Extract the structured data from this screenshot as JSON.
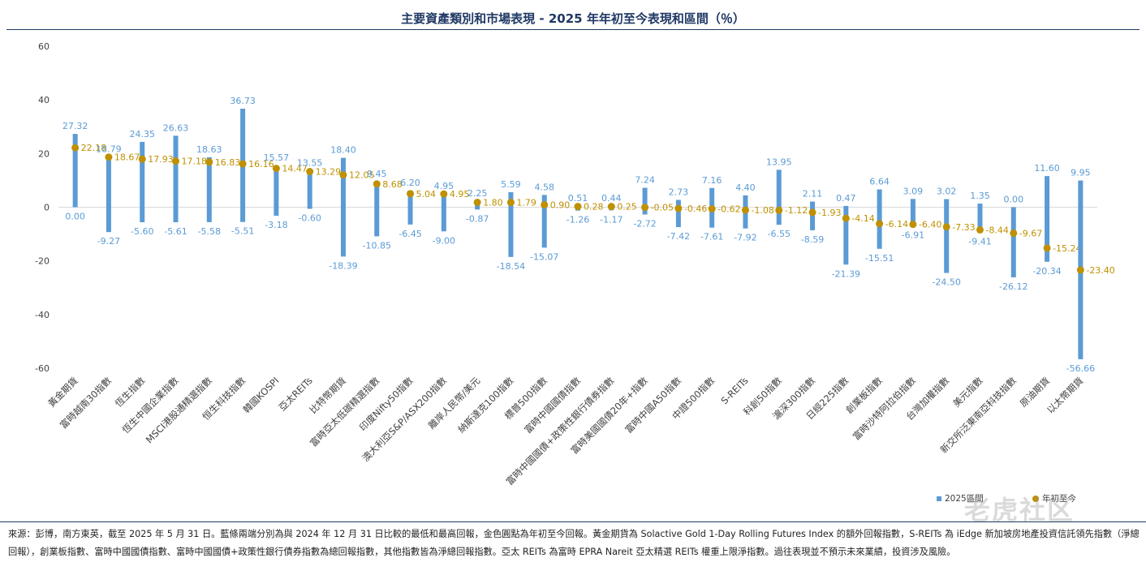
{
  "title": "主要資產類別和市場表現 - 2025 年年初至今表現和區間（％）",
  "footnote": "來源：彭博，南方東英，截至 2025 年 5 月 31 日。藍條兩端分別為與 2024 年 12 月 31 日比較的最低和最高回報，金色圓點為年初至今回報。黃金期貨為 Solactive Gold 1-Day Rolling Futures Index 的額外回報指數，S-REITs 為 iEdge 新加坡房地產投資信託領先指數（淨總回報），創業板指數、富時中國國債指數、富時中國國債+政策性銀行債券指數為總回報指數，其他指數皆為淨總回報指數。亞太 REITs 為富時 EPRA Nareit 亞太精選 REITs 權重上限淨指數。過往表現並不預示未來業績，投資涉及風險。",
  "watermark": "老虎社区",
  "colors": {
    "bar": "#5b9bd5",
    "dot": "#bf9000",
    "title": "#1f3864"
  },
  "chart_data": {
    "type": "bar",
    "ylim": [
      -60,
      60
    ],
    "yticks": [
      "60",
      "40",
      "20",
      "0",
      "-20",
      "-40",
      "-60"
    ],
    "ytick_values": [
      60,
      40,
      20,
      0,
      -20,
      -40,
      -60
    ],
    "grid": "zero-line only",
    "legend": {
      "position": "bottom-right",
      "range_label": "2025區間",
      "ytd_label": "年初至今"
    },
    "categories": [
      "黃金期貨",
      "富時越南30指數",
      "恆生指數",
      "恆生中國企業指數",
      "MSCI港股通精選指數",
      "恒生科技指數",
      "韓國KOSPI",
      "亞太REITs",
      "比特幣期貨",
      "富時亞太低碳精選指數",
      "印度Nifty50指數",
      "澳大利亞S&P/ASX200指數",
      "離岸人民幣/美元",
      "納斯達克100指數",
      "標普500指數",
      "富時中國國債指數",
      "富時中國國債+政策性銀行債券指數",
      "富時美國國債20年+指數",
      "富時中國A50指數",
      "中證500指數",
      "S-REITs",
      "科創50指數",
      "滬深300指數",
      "日經225指數",
      "創業板指數",
      "富時沙特阿拉伯指數",
      "台灣加權指數",
      "美元指數",
      "新交所泛東南亞科技指數",
      "原油期貨",
      "以太幣期貨"
    ],
    "high": [
      27.32,
      18.79,
      24.35,
      26.63,
      18.63,
      36.73,
      15.57,
      13.55,
      18.4,
      9.45,
      6.2,
      4.95,
      2.25,
      5.59,
      4.58,
      0.51,
      0.44,
      7.24,
      2.73,
      7.16,
      4.4,
      13.95,
      2.11,
      0.47,
      6.64,
      3.09,
      3.02,
      1.35,
      0.0,
      11.6,
      9.95
    ],
    "low": [
      0.0,
      -9.27,
      -5.6,
      -5.61,
      -5.58,
      -5.51,
      -3.18,
      -0.6,
      -18.39,
      -10.85,
      -6.45,
      -9.0,
      -0.87,
      -18.54,
      -15.07,
      -1.26,
      -1.17,
      -2.72,
      -7.42,
      -7.61,
      -7.92,
      -6.55,
      -8.59,
      -21.39,
      -15.51,
      -6.91,
      -24.5,
      -9.41,
      -26.12,
      -20.34,
      -56.66
    ],
    "ytd": [
      22.18,
      18.67,
      17.93,
      17.18,
      16.83,
      16.16,
      14.47,
      13.29,
      12.05,
      8.68,
      5.04,
      4.95,
      1.8,
      1.79,
      0.9,
      0.28,
      0.25,
      -0.05,
      -0.46,
      -0.62,
      -1.08,
      -1.12,
      -1.93,
      -4.14,
      -6.14,
      -6.4,
      -7.33,
      -8.44,
      -9.67,
      -15.24,
      -23.4
    ],
    "high_labels": [
      "27.32",
      "18.79",
      "24.35",
      "26.63",
      "18.63",
      "36.73",
      "15.57",
      "13.55",
      "18.40",
      "9.45",
      "6.20",
      "4.95",
      "2.25",
      "5.59",
      "4.58",
      "0.51",
      "0.44",
      "7.24",
      "2.73",
      "7.16",
      "4.40",
      "13.95",
      "2.11",
      "0.47",
      "6.64",
      "3.09",
      "3.02",
      "1.35",
      "0.00",
      "11.60",
      "9.95"
    ],
    "low_labels": [
      "0.00",
      "-9.27",
      "-5.60",
      "-5.61",
      "-5.58",
      "-5.51",
      "-3.18",
      "-0.60",
      "-18.39",
      "-10.85",
      "-6.45",
      "-9.00",
      "-0.87",
      "-18.54",
      "-15.07",
      "-1.26",
      "-1.17",
      "-2.72",
      "-7.42",
      "-7.61",
      "-7.92",
      "-6.55",
      "-8.59",
      "-21.39",
      "-15.51",
      "-6.91",
      "-24.50",
      "-9.41",
      "-26.12",
      "-20.34",
      "-56.66"
    ],
    "ytd_labels": [
      "22.18",
      "18.67",
      "17.93",
      "17.18",
      "16.83",
      "16.16",
      "14.47",
      "13.29",
      "12.05",
      "8.68",
      "5.04",
      "4.95",
      "1.80",
      "1.79",
      "0.90",
      "0.28",
      "0.25",
      "-0.05",
      "-0.46",
      "-0.62",
      "-1.08",
      "-1.12",
      "-1.93",
      "-4.14",
      "-6.14",
      "-6.40",
      "-7.33",
      "-8.44",
      "-9.67",
      "-15.24",
      "-23.40"
    ]
  }
}
